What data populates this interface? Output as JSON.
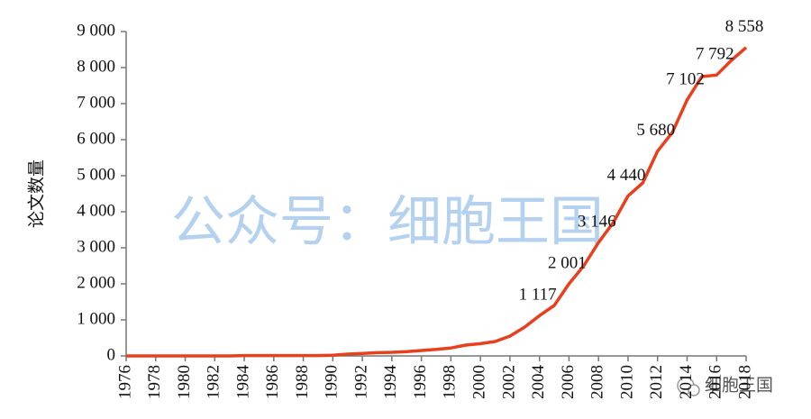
{
  "chart_data": {
    "type": "line",
    "y_label": "论文数量",
    "watermark": "公众号：细胞王国",
    "logo_text": "细胞王国",
    "x": [
      1976,
      1977,
      1978,
      1979,
      1980,
      1981,
      1982,
      1983,
      1984,
      1985,
      1986,
      1987,
      1988,
      1989,
      1990,
      1991,
      1992,
      1993,
      1994,
      1995,
      1996,
      1997,
      1998,
      1999,
      2000,
      2001,
      2002,
      2003,
      2004,
      2005,
      2006,
      2007,
      2008,
      2009,
      2010,
      2011,
      2012,
      2013,
      2014,
      2015,
      2016,
      2017,
      2018
    ],
    "xlim": [
      1976,
      2018
    ],
    "xticks": [
      1976,
      1978,
      1980,
      1982,
      1984,
      1986,
      1988,
      1990,
      1992,
      1994,
      1996,
      1998,
      2000,
      2002,
      2004,
      2006,
      2008,
      2010,
      2012,
      2014,
      2016,
      2018
    ],
    "ylim": [
      0,
      9000
    ],
    "yticks": [
      0,
      {
        "value": 1000,
        "label": "1 000"
      },
      {
        "value": 2000,
        "label": "2 000"
      },
      {
        "value": 3000,
        "label": "3 000"
      },
      {
        "value": 4000,
        "label": "4 000"
      },
      {
        "value": 5000,
        "label": "5 000"
      },
      {
        "value": 6000,
        "label": "6 000"
      },
      {
        "value": 7000,
        "label": "7 000"
      },
      {
        "value": 8000,
        "label": "8 000"
      },
      {
        "value": 9000,
        "label": "9 000"
      }
    ],
    "series": [
      {
        "name": "论文数量",
        "color": "#e8401c",
        "values": [
          0,
          0,
          0,
          0,
          0,
          0,
          0,
          0,
          10,
          10,
          10,
          10,
          10,
          10,
          20,
          50,
          70,
          90,
          100,
          120,
          150,
          180,
          220,
          300,
          340,
          400,
          550,
          800,
          1117,
          1400,
          2001,
          2500,
          3146,
          3700,
          4440,
          4800,
          5680,
          6200,
          7102,
          7750,
          7792,
          8200,
          8558
        ],
        "value_labels": [
          null,
          null,
          null,
          null,
          null,
          null,
          null,
          null,
          null,
          null,
          null,
          null,
          null,
          null,
          null,
          null,
          null,
          null,
          null,
          null,
          null,
          null,
          null,
          null,
          null,
          null,
          null,
          null,
          "1 117",
          null,
          "2 001",
          null,
          "3 146",
          null,
          "4 440",
          null,
          "5 680",
          null,
          "7 102",
          null,
          "7 792",
          null,
          "8 558"
        ]
      }
    ]
  }
}
